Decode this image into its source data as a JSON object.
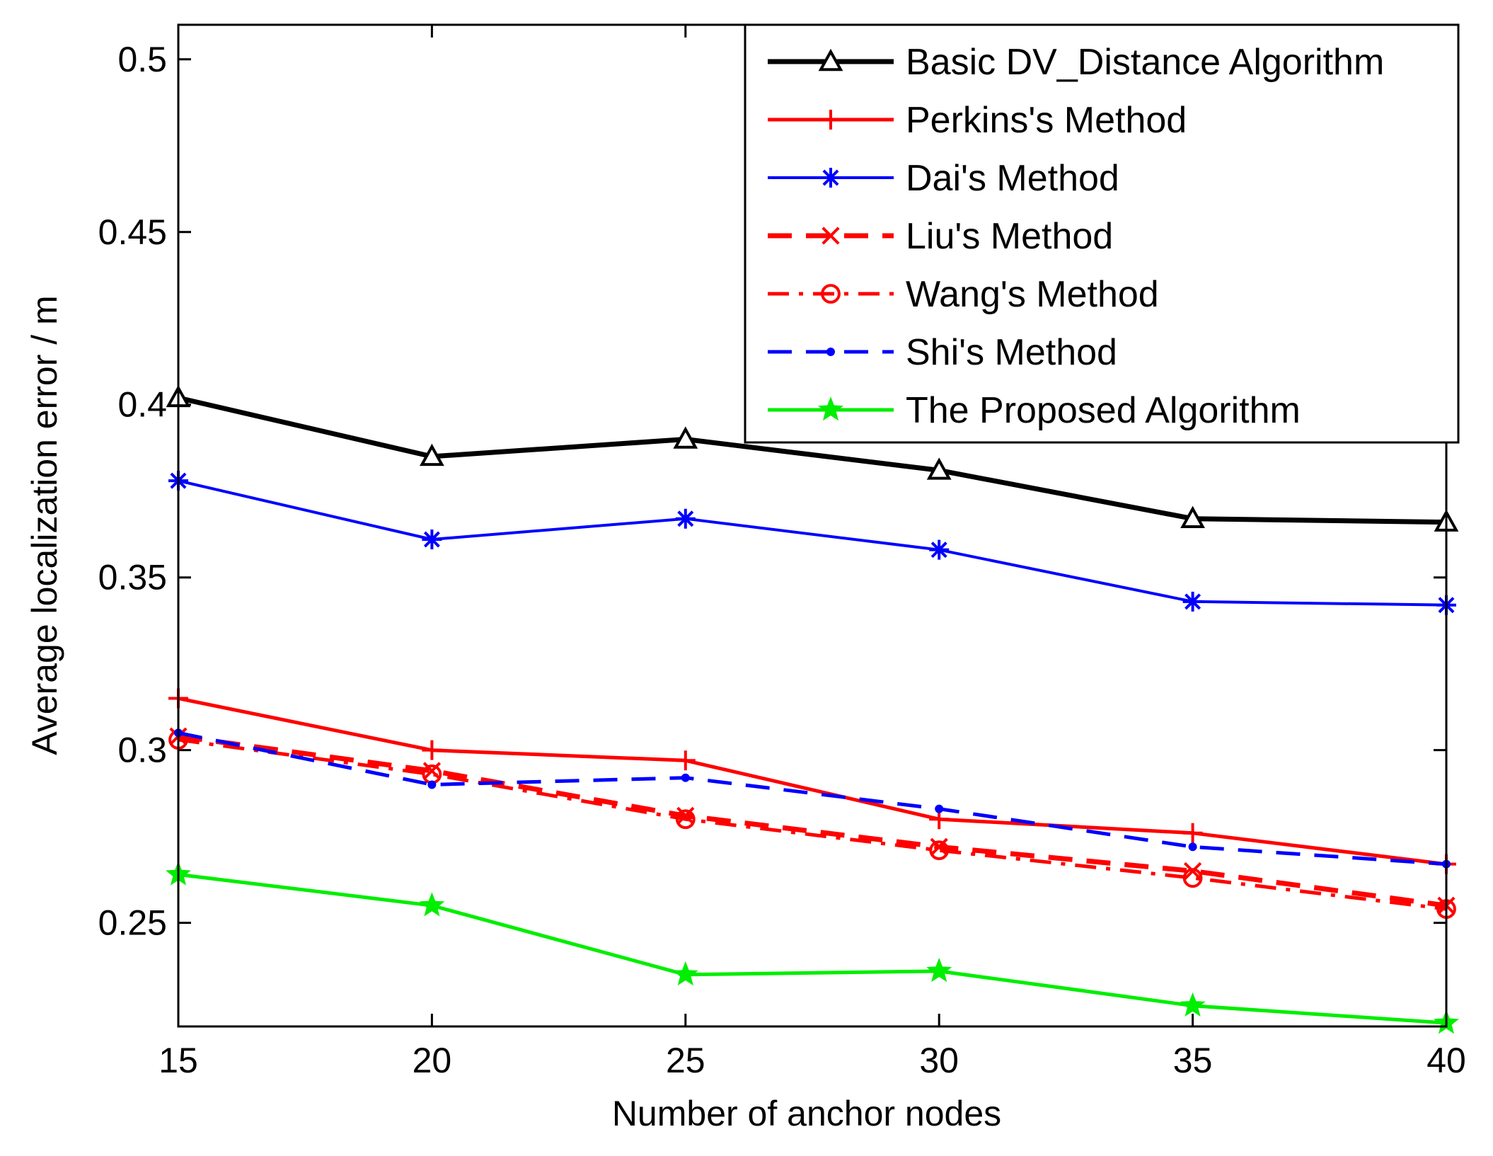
{
  "chart_data": {
    "type": "line",
    "title": "",
    "xlabel": "Number of anchor nodes",
    "ylabel": "Average localization error / m",
    "xlim": [
      15,
      40
    ],
    "ylim": [
      0.22,
      0.51
    ],
    "x": [
      15,
      20,
      25,
      30,
      35,
      40
    ],
    "xticks": [
      "15",
      "20",
      "25",
      "30",
      "35",
      "40"
    ],
    "yticks": [
      "0.25",
      "0.3",
      "0.35",
      "0.4",
      "0.45",
      "0.5"
    ],
    "ytick_values": [
      0.25,
      0.3,
      0.35,
      0.4,
      0.45,
      0.5
    ],
    "grid": false,
    "legend_position": "top-right",
    "series": [
      {
        "name": "Basic DV_Distance Algorithm",
        "values": [
          0.402,
          0.385,
          0.39,
          0.381,
          0.367,
          0.366
        ],
        "color": "#000000",
        "marker": "triangle",
        "dash": "solid",
        "width": 7
      },
      {
        "name": "Perkins's Method",
        "values": [
          0.315,
          0.3,
          0.297,
          0.28,
          0.276,
          0.267
        ],
        "color": "#ff0000",
        "marker": "plus",
        "dash": "solid",
        "width": 5
      },
      {
        "name": "Dai's Method",
        "values": [
          0.378,
          0.361,
          0.367,
          0.358,
          0.343,
          0.342
        ],
        "color": "#0000ff",
        "marker": "asterisk",
        "dash": "solid",
        "width": 4
      },
      {
        "name": "Liu's Method",
        "values": [
          0.304,
          0.294,
          0.281,
          0.272,
          0.265,
          0.255
        ],
        "color": "#ff0000",
        "marker": "x",
        "dash": "dashed",
        "width": 7
      },
      {
        "name": "Wang's Method",
        "values": [
          0.303,
          0.293,
          0.28,
          0.271,
          0.263,
          0.254
        ],
        "color": "#ff0000",
        "marker": "circle",
        "dash": "dashdot",
        "width": 5
      },
      {
        "name": "Shi's Method",
        "values": [
          0.305,
          0.29,
          0.292,
          0.283,
          0.272,
          0.267
        ],
        "color": "#0000ff",
        "marker": "point",
        "dash": "dashed",
        "width": 5
      },
      {
        "name": "The Proposed Algorithm",
        "values": [
          0.264,
          0.255,
          0.235,
          0.236,
          0.226,
          0.221
        ],
        "color": "#00ee00",
        "marker": "star",
        "dash": "solid",
        "width": 5
      }
    ]
  }
}
